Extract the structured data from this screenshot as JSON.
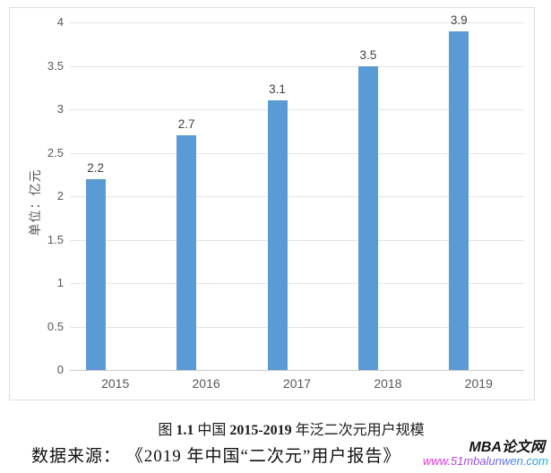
{
  "chart_data": {
    "type": "bar",
    "categories": [
      "2015",
      "2016",
      "2017",
      "2018",
      "2019"
    ],
    "values": [
      2.2,
      2.7,
      3.1,
      3.5,
      3.9
    ],
    "data_labels": [
      "2.2",
      "2.7",
      "3.1",
      "3.5",
      "3.9"
    ],
    "title": "",
    "xlabel": "",
    "ylabel": "单位：亿元",
    "ylim": [
      0,
      4
    ],
    "ytick_step": 0.5,
    "grid": true,
    "legend": "none",
    "bar_color": "#5B9BD5",
    "grid_color": "#e4e4e4",
    "baseline_color": "#c9c9c9",
    "tick_color": "#595959",
    "data_label_color": "#404040"
  },
  "caption": {
    "parts": [
      {
        "text": "图 ",
        "bold": false
      },
      {
        "text": "1.1",
        "bold": true
      },
      {
        "text": "  中国 ",
        "bold": false
      },
      {
        "text": "2015-2019",
        "bold": true
      },
      {
        "text": " 年泛二次元用户规模",
        "bold": false
      }
    ]
  },
  "source": {
    "text": "数据来源： 《2019 年中国“二次元”用户报告》"
  },
  "watermark": {
    "site_name": "MBA论文网",
    "site_url": "www.51mbalunwen.com"
  }
}
